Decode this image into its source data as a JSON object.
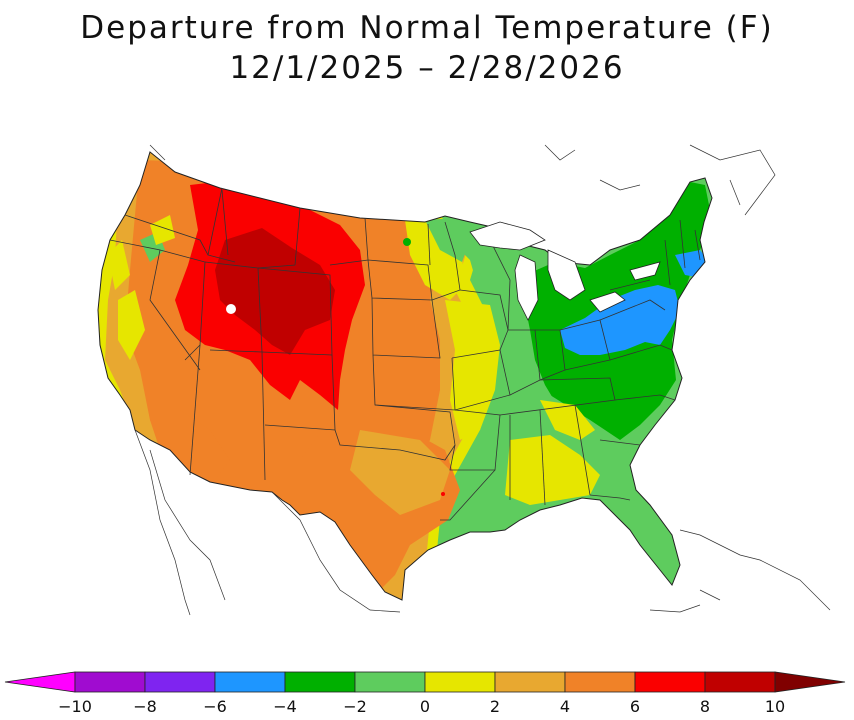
{
  "title": {
    "line1": "Departure from Normal Temperature (F)",
    "line2": "12/1/2025 – 2/28/2026"
  },
  "legend": {
    "min_arrow_color": "#ff00ff",
    "max_arrow_color": "#800000",
    "bins": [
      {
        "from": -10,
        "to": -8,
        "color": "#a00cd0"
      },
      {
        "from": -8,
        "to": -6,
        "color": "#7f24f0"
      },
      {
        "from": -6,
        "to": -4,
        "color": "#1e96ff"
      },
      {
        "from": -4,
        "to": -2,
        "color": "#00b000"
      },
      {
        "from": -2,
        "to": 0,
        "color": "#5ecc5e"
      },
      {
        "from": 0,
        "to": 2,
        "color": "#e6e600"
      },
      {
        "from": 2,
        "to": 4,
        "color": "#e8a830"
      },
      {
        "from": 4,
        "to": 6,
        "color": "#f08228"
      },
      {
        "from": 6,
        "to": 8,
        "color": "#fa0000"
      },
      {
        "from": 8,
        "to": 10,
        "color": "#c00000"
      }
    ],
    "tick_labels": [
      "−10",
      "−8",
      "−6",
      "−4",
      "−2",
      "0",
      "2",
      "4",
      "6",
      "8",
      "10"
    ]
  }
}
